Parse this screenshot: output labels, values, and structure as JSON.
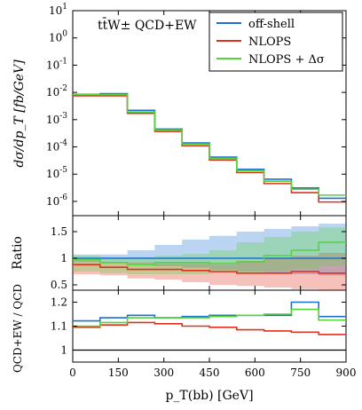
{
  "chart_data": {
    "type": "line",
    "annotation": "tt̄W± QCD+EW",
    "xlabel": "p_T(bb) [GeV]",
    "x_ticks": [
      "0",
      "150",
      "300",
      "450",
      "600",
      "750",
      "900"
    ],
    "bin_edges": [
      0,
      90,
      180,
      270,
      360,
      450,
      540,
      630,
      720,
      810,
      900
    ],
    "legend": {
      "placement": "top-right",
      "entries": [
        "off-shell",
        "NLOPS",
        "NLOPS + Δσ"
      ]
    },
    "colors": {
      "offshell": "#1f6fd1",
      "nlops": "#e0301e",
      "nlops_dsigma": "#55d43a"
    },
    "panels": [
      {
        "name": "main",
        "ylabel": "dσ/dp_T [fb/GeV]",
        "scale": "log",
        "ylim": [
          3e-07,
          10
        ],
        "y_ticks": [
          "10^1",
          "10^0",
          "10^-1",
          "10^-2",
          "10^-3",
          "10^-4",
          "10^-5",
          "10^-6"
        ],
        "series": [
          {
            "name": "off-shell",
            "color_key": "offshell",
            "values": [
              0.0085,
              0.009,
              0.0022,
              0.00045,
              0.00014,
              4.2e-05,
              1.5e-05,
              6.5e-06,
              3.1e-06,
              1.3e-06
            ]
          },
          {
            "name": "NLOPS",
            "color_key": "nlops",
            "values": [
              0.0075,
              0.0075,
              0.0017,
              0.00037,
              0.00011,
              3.3e-05,
              1.15e-05,
              4.5e-06,
              2.1e-06,
              9.5e-07
            ]
          },
          {
            "name": "NLOPS + Δσ",
            "color_key": "nlops_dsigma",
            "values": [
              0.0083,
              0.0083,
              0.0019,
              0.00042,
              0.000127,
              3.8e-05,
              1.35e-05,
              5.5e-06,
              2.8e-06,
              1.7e-06
            ]
          }
        ]
      },
      {
        "name": "ratio",
        "ylabel": "Ratio",
        "scale": "linear",
        "ylim": [
          0.4,
          1.8
        ],
        "y_ticks": [
          "0.5",
          "1",
          "1.5"
        ],
        "bands": [
          {
            "color_key": "offshell",
            "low": [
              0.93,
              0.93,
              0.9,
              0.85,
              0.82,
              0.78,
              0.75,
              0.72,
              0.7,
              0.68
            ],
            "high": [
              1.07,
              1.07,
              1.15,
              1.25,
              1.35,
              1.42,
              1.5,
              1.55,
              1.6,
              1.65
            ]
          },
          {
            "color_key": "nlops",
            "low": [
              0.7,
              0.68,
              0.62,
              0.6,
              0.55,
              0.5,
              0.48,
              0.45,
              0.42,
              0.4
            ],
            "high": [
              0.95,
              0.92,
              0.92,
              0.9,
              0.9,
              0.88,
              0.95,
              1.0,
              1.05,
              1.1
            ]
          },
          {
            "color_key": "nlops_dsigma",
            "low": [
              0.75,
              0.72,
              0.7,
              0.7,
              0.7,
              0.72,
              0.72,
              0.75,
              0.8,
              0.85
            ],
            "high": [
              1.05,
              1.02,
              1.02,
              1.05,
              1.08,
              1.15,
              1.3,
              1.4,
              1.5,
              1.58
            ]
          }
        ],
        "series": [
          {
            "name": "off-shell",
            "color_key": "offshell",
            "values": [
              1,
              1,
              1,
              1,
              1,
              1,
              1,
              1,
              1,
              1
            ]
          },
          {
            "name": "NLOPS",
            "color_key": "nlops",
            "values": [
              0.88,
              0.83,
              0.79,
              0.79,
              0.77,
              0.75,
              0.72,
              0.72,
              0.75,
              0.72
            ]
          },
          {
            "name": "NLOPS + Δσ",
            "color_key": "nlops_dsigma",
            "values": [
              0.97,
              0.92,
              0.88,
              0.92,
              0.92,
              0.9,
              0.93,
              1.05,
              1.15,
              1.3
            ]
          }
        ]
      },
      {
        "name": "kfactor",
        "ylabel": "QCD+EW / QCD",
        "scale": "linear",
        "ylim": [
          0.95,
          1.25
        ],
        "y_ticks": [
          "1",
          "1.1",
          "1.2"
        ],
        "reference": 1,
        "series": [
          {
            "name": "off-shell",
            "color_key": "offshell",
            "values": [
              1.122,
              1.135,
              1.145,
              1.135,
              1.14,
              1.145,
              1.145,
              1.145,
              1.2,
              1.14
            ]
          },
          {
            "name": "NLOPS",
            "color_key": "nlops",
            "values": [
              1.095,
              1.105,
              1.115,
              1.11,
              1.1,
              1.095,
              1.085,
              1.08,
              1.075,
              1.065
            ]
          },
          {
            "name": "NLOPS + Δσ",
            "color_key": "nlops_dsigma",
            "values": [
              1.1,
              1.115,
              1.135,
              1.135,
              1.135,
              1.14,
              1.145,
              1.15,
              1.17,
              1.125
            ]
          }
        ]
      }
    ]
  }
}
